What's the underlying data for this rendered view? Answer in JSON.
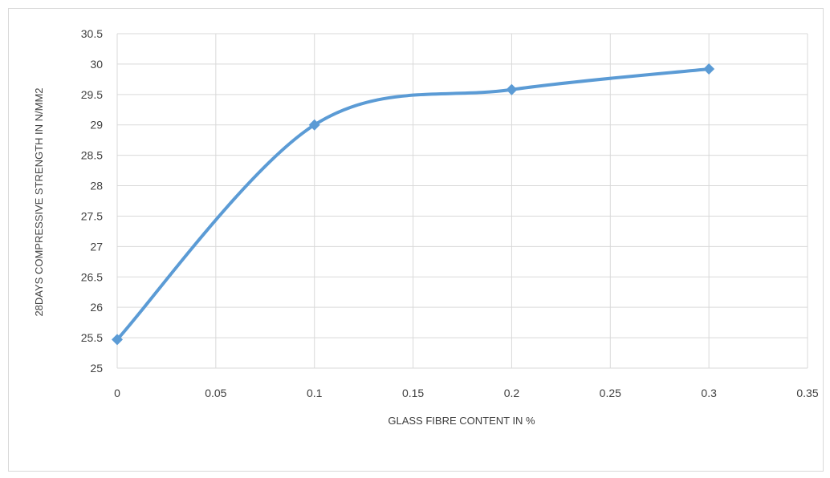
{
  "chart_data": {
    "type": "line",
    "smooth": true,
    "marker": "diamond",
    "line_color": "#5b9bd5",
    "grid": true,
    "xlabel": "GLASS FIBRE CONTENT IN %",
    "ylabel": "28DAYS COMPRESSIVE STRENGTH IN N/MM2",
    "xlim": [
      0,
      0.35
    ],
    "ylim": [
      25,
      30.5
    ],
    "x_ticks": [
      "0",
      "0.05",
      "0.1",
      "0.15",
      "0.2",
      "0.25",
      "0.3",
      "0.35"
    ],
    "y_ticks": [
      "25",
      "25.5",
      "26",
      "26.5",
      "27",
      "27.5",
      "28",
      "28.5",
      "29",
      "29.5",
      "30",
      "30.5"
    ],
    "series": [
      {
        "x": [
          0,
          0.1,
          0.2,
          0.3
        ],
        "y": [
          25.47,
          29.0,
          29.58,
          29.92
        ]
      }
    ]
  }
}
